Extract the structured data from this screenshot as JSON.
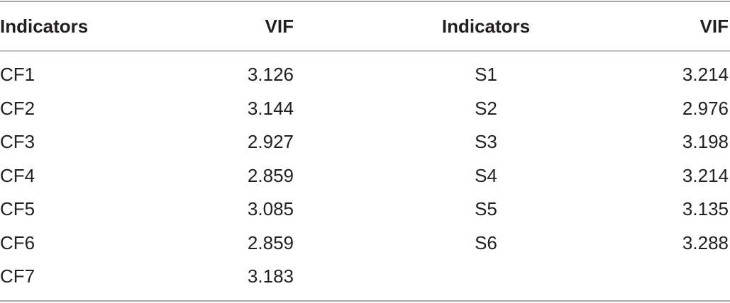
{
  "table": {
    "header": [
      "Indicators",
      "VIF",
      "Indicators",
      "VIF"
    ],
    "rows": [
      [
        "CF1",
        "3.126",
        "S1",
        "3.214"
      ],
      [
        "CF2",
        "3.144",
        "S2",
        "2.976"
      ],
      [
        "CF3",
        "2.927",
        "S3",
        "3.198"
      ],
      [
        "CF4",
        "2.859",
        "S4",
        "3.214"
      ],
      [
        "CF5",
        "3.085",
        "S5",
        "3.135"
      ],
      [
        "CF6",
        "2.859",
        "S6",
        "3.288"
      ],
      [
        "CF7",
        "3.183"
      ]
    ]
  }
}
